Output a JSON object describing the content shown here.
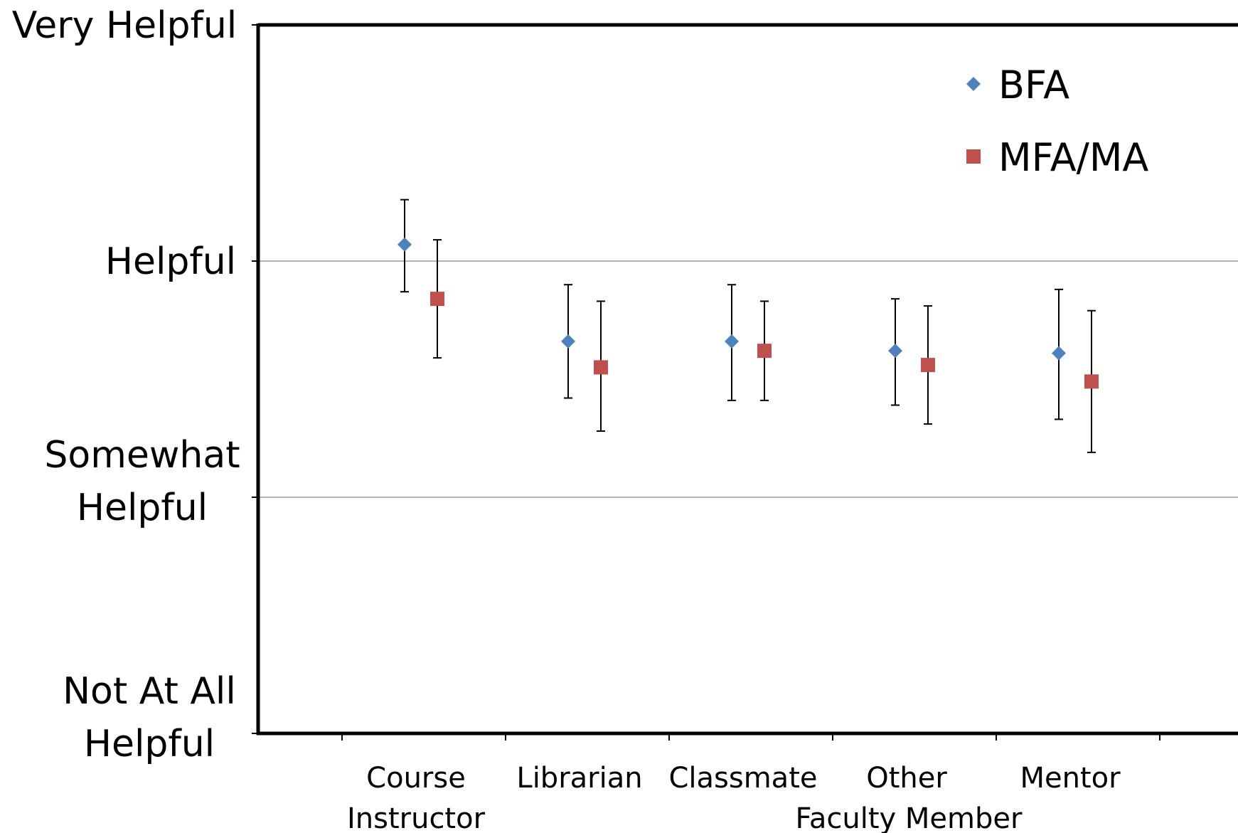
{
  "chart_data": {
    "type": "scatter",
    "title": "",
    "xlabel": "",
    "ylabel": "",
    "categories": [
      "Course Instructor",
      "Librarian",
      "Classmate",
      "Other Faculty  Member",
      "Mentor"
    ],
    "category_label_lines": [
      [
        "Course",
        "Instructor"
      ],
      [
        "Librarian"
      ],
      [
        "Classmate"
      ],
      [
        "Other",
        "Faculty  Member"
      ],
      [
        "Mentor"
      ]
    ],
    "y_scale": [
      1,
      2,
      3,
      4
    ],
    "y_tick_labels": [
      [
        "Not At All",
        "Helpful"
      ],
      [
        "Somewhat",
        "Helpful"
      ],
      [
        "Helpful"
      ],
      [
        "Very Helpful"
      ]
    ],
    "ylim": [
      1,
      4
    ],
    "grid": true,
    "legend_position": "top-right",
    "error_bars": true,
    "series": [
      {
        "name": "BFA",
        "marker": "diamond",
        "color": "#4F81BD",
        "values": [
          3.07,
          2.66,
          2.66,
          2.62,
          2.61
        ],
        "err_low": [
          2.87,
          2.42,
          2.41,
          2.39,
          2.33
        ],
        "err_high": [
          3.26,
          2.9,
          2.9,
          2.84,
          2.88
        ]
      },
      {
        "name": "MFA/MA",
        "marker": "square",
        "color": "#C0504D",
        "values": [
          2.84,
          2.55,
          2.62,
          2.56,
          2.49
        ],
        "err_low": [
          2.59,
          2.28,
          2.41,
          2.31,
          2.19
        ],
        "err_high": [
          3.09,
          2.83,
          2.83,
          2.81,
          2.79
        ]
      }
    ]
  }
}
